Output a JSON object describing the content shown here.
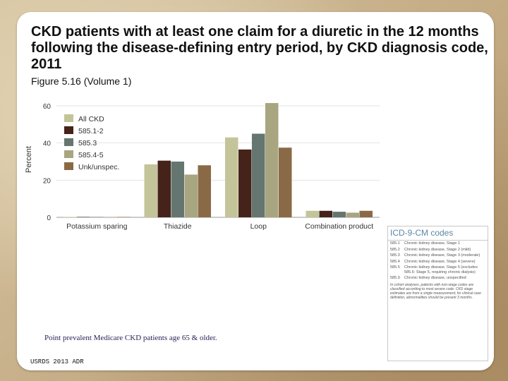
{
  "title": "CKD patients with at least one claim for a diuretic in the 12 months following the disease-defining entry period, by CKD diagnosis code, 2011",
  "subtitle": "Figure 5.16 (Volume 1)",
  "footnote": "Point prevalent Medicare CKD patients age 65 & older.",
  "source": "USRDS 2013 ADR",
  "chart_data": {
    "type": "bar",
    "title": "",
    "xlabel": "",
    "ylabel": "Percent",
    "ylim": [
      0,
      60
    ],
    "yticks": [
      0,
      20,
      40,
      60
    ],
    "grid": true,
    "legend_position": "top-left",
    "categories": [
      "Potassium sparing",
      "Thiazide",
      "Loop",
      "Combination product"
    ],
    "series": [
      {
        "name": "All CKD",
        "color": "#c4c49a",
        "values": [
          0.2,
          28.5,
          43,
          3.5
        ]
      },
      {
        "name": "585.1-2",
        "color": "#45231a",
        "values": [
          0.2,
          30.5,
          36.5,
          3.5
        ]
      },
      {
        "name": "585.3",
        "color": "#64766f",
        "values": [
          0.2,
          30,
          45,
          3
        ]
      },
      {
        "name": "585.4-5",
        "color": "#a8a581",
        "values": [
          0.2,
          23,
          61.5,
          2.5
        ]
      },
      {
        "name": "Unk/unspec.",
        "color": "#8a6a46",
        "values": [
          0.2,
          28,
          37.5,
          3.5
        ]
      }
    ]
  },
  "codes_box": {
    "title": "ICD-9-CM codes",
    "rows": [
      {
        "code": "585.1",
        "desc": "Chronic kidney disease, Stage 1"
      },
      {
        "code": "585.2",
        "desc": "Chronic kidney disease, Stage 2 (mild)"
      },
      {
        "code": "585.3",
        "desc": "Chronic kidney disease, Stage 3 (moderate)"
      },
      {
        "code": "585.4",
        "desc": "Chronic kidney disease, Stage 4 (severe)"
      },
      {
        "code": "585.5",
        "desc": "Chronic kidney disease, Stage 5 (excludes 585.6: Stage 5, requiring chronic dialysis)"
      },
      {
        "code": "585.9",
        "desc": "Chronic kidney disease, unspecified"
      }
    ],
    "note": "In cohort analyses, patients with non-stage codes are classified according to most severe code. CKD stage estimates are from a single measurement; for clinical case definition, abnormalities should be present 3 months."
  }
}
